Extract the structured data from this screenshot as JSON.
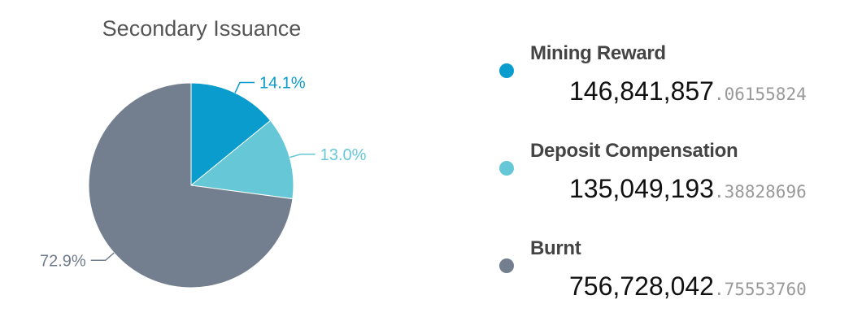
{
  "chart_data": {
    "type": "pie",
    "title": "Secondary Issuance",
    "slices": [
      {
        "name": "Mining Reward",
        "percent": 14.1,
        "label": "14.1%",
        "color": "#0a9ccc",
        "value_int": "146,841,857",
        "value_dec": ".06155824"
      },
      {
        "name": "Deposit Compensation",
        "percent": 13.0,
        "label": "13.0%",
        "color": "#66c8d6",
        "value_int": "135,049,193",
        "value_dec": ".38828696"
      },
      {
        "name": "Burnt",
        "percent": 72.9,
        "label": "72.9%",
        "color": "#737f8e",
        "value_int": "756,728,042",
        "value_dec": ".75553760"
      }
    ]
  }
}
